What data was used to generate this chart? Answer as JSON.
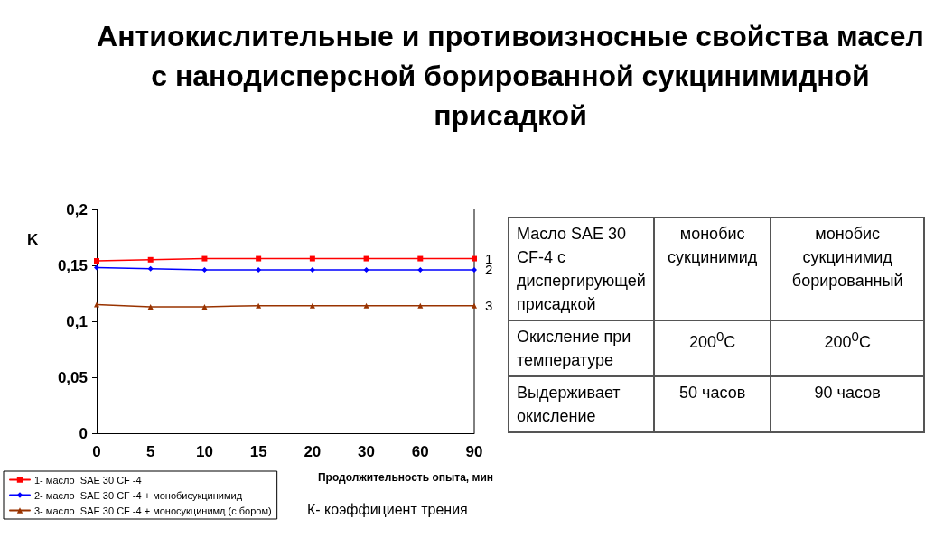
{
  "chart_data": [
    {
      "type": "line",
      "title": "Антиокислительные и противоизносные свойства масел с нанодисперсной борированной сукцинимидной присадкой",
      "ylabel": "K",
      "xlabel": "Продолжительность опыта, мин",
      "categories": [
        "0",
        "5",
        "10",
        "15",
        "20",
        "30",
        "60",
        "90"
      ],
      "series": [
        {
          "name": "1- масло  SAE 30 CF -4",
          "color": "#ff0000",
          "marker": "square",
          "values": [
            0.154,
            0.155,
            0.156,
            0.156,
            0.156,
            0.156,
            0.156,
            0.156
          ]
        },
        {
          "name": "2- масло  SAE 30 CF -4 + монобисукцинимид",
          "color": "#0000ff",
          "marker": "diamond",
          "values": [
            0.148,
            0.147,
            0.146,
            0.146,
            0.146,
            0.146,
            0.146,
            0.146
          ]
        },
        {
          "name": "3- масло  SAE 30 CF -4 + моносукцинимд (с бором)",
          "color": "#993300",
          "marker": "triangle",
          "values": [
            0.115,
            0.113,
            0.113,
            0.114,
            0.114,
            0.114,
            0.114,
            0.114
          ]
        }
      ],
      "ylim": [
        0,
        0.2
      ],
      "yticks": [
        {
          "value": 0,
          "label": "0"
        },
        {
          "value": 0.05,
          "label": "0,05"
        },
        {
          "value": 0.1,
          "label": "0,1"
        },
        {
          "value": 0.15,
          "label": "0,15"
        },
        {
          "value": 0.2,
          "label": "0,2"
        }
      ],
      "grid": false,
      "legend": "bottom left",
      "line_style": "solid",
      "annotations": [
        {
          "text": "1",
          "x": "90",
          "y": 0.156
        },
        {
          "text": "2",
          "x": "90",
          "y": 0.146
        },
        {
          "text": "3",
          "x": "90",
          "y": 0.114
        },
        "К- коэффициент трения"
      ]
    },
    {
      "type": "other",
      "title": "Масло SAE 30 CF-4 с диспергирующей присадкой",
      "categories": [
        "монобис сукцинимид",
        "монобис сукцинимид борированный"
      ],
      "y_categories": [
        "Окисление при температуре",
        "Выдерживает окисление"
      ],
      "cell_labels": [
        [
          "200$^{0}$C",
          "200$^{0}$C"
        ],
        [
          "50 часов",
          "90 часов"
        ]
      ]
    }
  ]
}
